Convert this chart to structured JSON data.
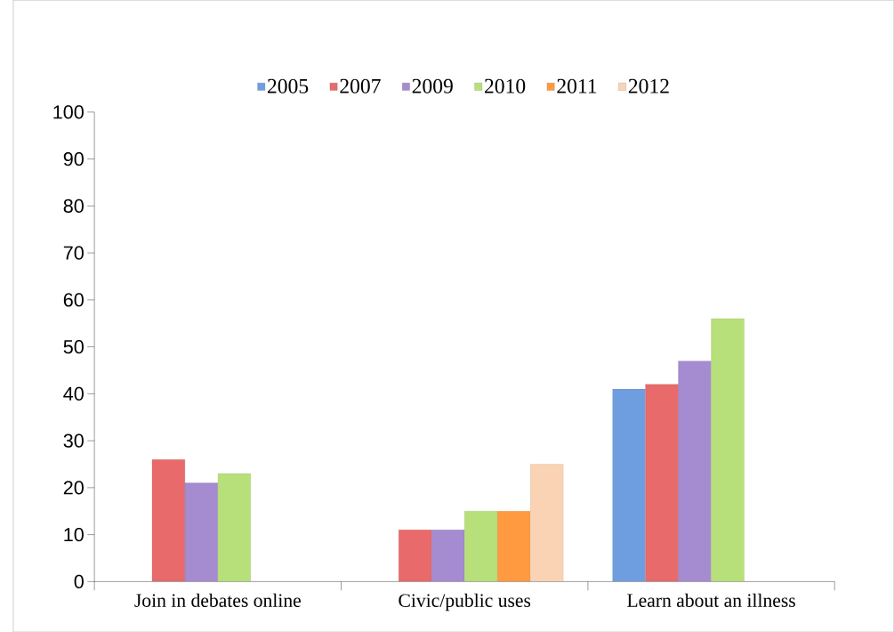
{
  "chart_data": {
    "type": "bar",
    "categories": [
      "Join in debates online",
      "Civic/public uses",
      "Learn about an illness"
    ],
    "series": [
      {
        "name": "2005",
        "color": "#6f9ee0",
        "values": [
          null,
          null,
          41
        ]
      },
      {
        "name": "2007",
        "color": "#e86a6a",
        "values": [
          26,
          11,
          42
        ]
      },
      {
        "name": "2009",
        "color": "#a58bd0",
        "values": [
          21,
          11,
          47
        ]
      },
      {
        "name": "2010",
        "color": "#b8e07a",
        "values": [
          23,
          15,
          56
        ]
      },
      {
        "name": "2011",
        "color": "#ff9a40",
        "values": [
          null,
          15,
          null
        ]
      },
      {
        "name": "2012",
        "color": "#fad3b4",
        "values": [
          null,
          25,
          null
        ]
      }
    ],
    "ylim": [
      0,
      100
    ],
    "yticks": [
      0,
      10,
      20,
      30,
      40,
      50,
      60,
      70,
      80,
      90,
      100
    ],
    "legend": "top"
  }
}
